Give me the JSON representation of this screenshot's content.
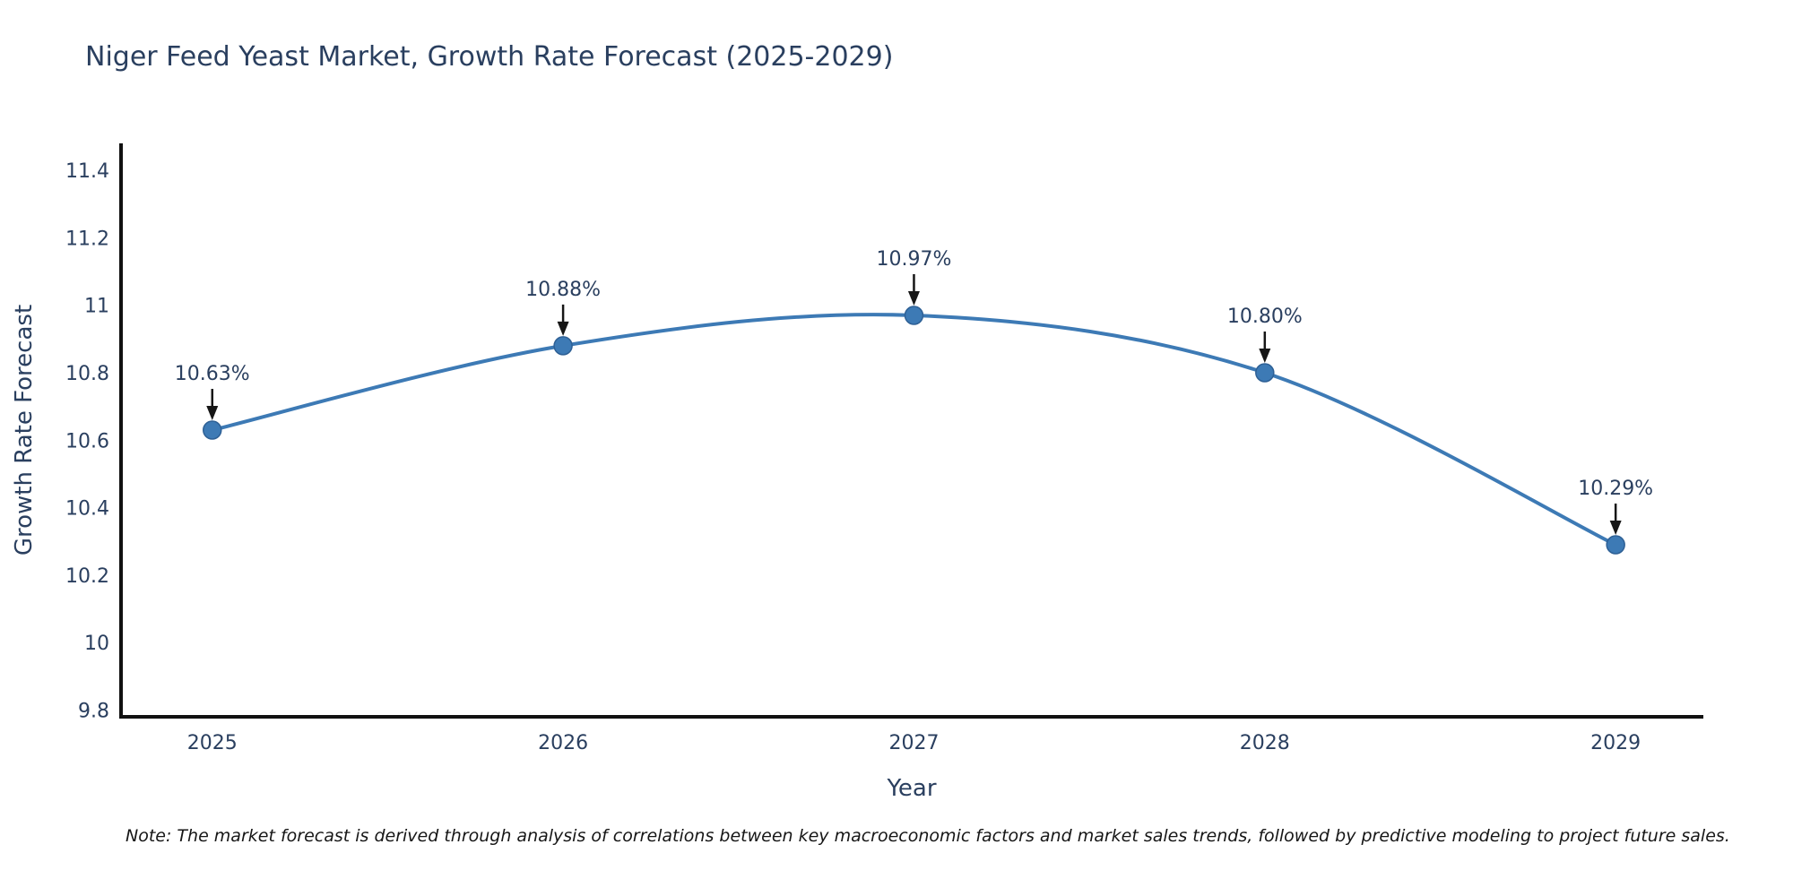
{
  "chart_data": {
    "type": "line",
    "title": "Niger Feed Yeast Market, Growth Rate Forecast (2025-2029)",
    "xlabel": "Year",
    "ylabel": "Growth Rate Forecast",
    "x": [
      2025,
      2026,
      2027,
      2028,
      2029
    ],
    "y": [
      10.63,
      10.88,
      10.97,
      10.8,
      10.29
    ],
    "point_labels": [
      "10.63%",
      "10.88%",
      "10.97%",
      "10.80%",
      "10.29%"
    ],
    "xtick_labels": [
      "2025",
      "2026",
      "2027",
      "2028",
      "2029"
    ],
    "ytick_values": [
      9.8,
      10,
      10.2,
      10.4,
      10.6,
      10.8,
      11,
      11.2,
      11.4
    ],
    "ytick_labels": [
      "9.8",
      "10",
      "10.2",
      "10.4",
      "10.6",
      "10.8",
      "11",
      "11.2",
      "11.4"
    ],
    "xlim": [
      2024.74,
      2029.25
    ],
    "ylim": [
      9.78,
      11.48
    ],
    "grid": false,
    "legend": "none",
    "line_shape": "spline",
    "note": "Note: The market forecast is derived through analysis of correlations between key macroeconomic factors and market sales trends, followed by predictive modeling to project future sales.",
    "colors": {
      "line": "#3d7ab5",
      "marker_fill": "#3d7ab5",
      "marker_edge": "#2e6095",
      "axis_line": "#111111",
      "label_text": "#2a3f5f",
      "annotation_arrow": "#161616",
      "note_text": "#161616",
      "background": "#ffffff"
    }
  }
}
